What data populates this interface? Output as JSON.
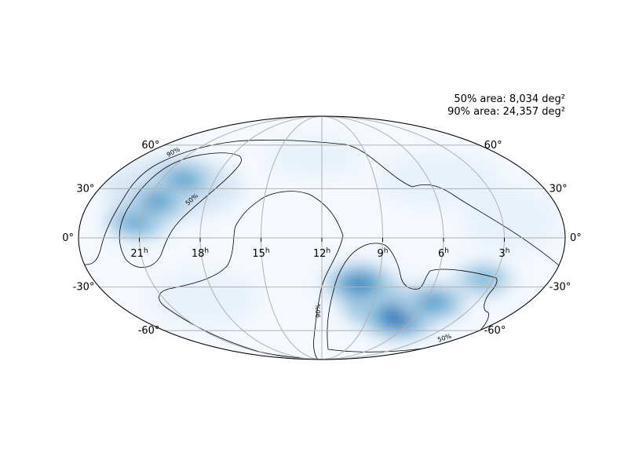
{
  "stats": {
    "area_50": "50% area: 8,034 deg²",
    "area_90": "90% area: 24,357 deg²"
  },
  "projection": "mollweide",
  "ra_ticks": [
    {
      "hours": 21,
      "label": "21",
      "sup": "h"
    },
    {
      "hours": 18,
      "label": "18",
      "sup": "h"
    },
    {
      "hours": 15,
      "label": "15",
      "sup": "h"
    },
    {
      "hours": 12,
      "label": "12",
      "sup": "h"
    },
    {
      "hours": 9,
      "label": "9",
      "sup": "h"
    },
    {
      "hours": 6,
      "label": "6",
      "sup": "h"
    },
    {
      "hours": 3,
      "label": "3",
      "sup": "h"
    }
  ],
  "dec_ticks": [
    {
      "deg": 60,
      "label": "60°"
    },
    {
      "deg": 30,
      "label": "30°"
    },
    {
      "deg": 0,
      "label": "0°"
    },
    {
      "deg": -30,
      "label": "-30°"
    },
    {
      "deg": -60,
      "label": "-60°"
    }
  ],
  "contour_labels": {
    "c50": "50%",
    "c90": "90%"
  },
  "colors": {
    "colormap": "Blues",
    "grid": "#b0b0b0",
    "contour": "#000000",
    "peak": "#08306b"
  },
  "probability_blobs": [
    {
      "ra_h": 8.4,
      "dec": -42,
      "strength": 1.0
    },
    {
      "ra_h": 7.0,
      "dec": -50,
      "strength": 0.85
    },
    {
      "ra_h": 5.5,
      "dec": -40,
      "strength": 0.55
    },
    {
      "ra_h": 10.0,
      "dec": -28,
      "strength": 0.7
    },
    {
      "ra_h": 3.5,
      "dec": -25,
      "strength": 0.3
    },
    {
      "ra_h": 19.8,
      "dec": 35,
      "strength": 0.55
    },
    {
      "ra_h": 21.2,
      "dec": 10,
      "strength": 0.5
    },
    {
      "ra_h": 20.5,
      "dec": 22,
      "strength": 0.45
    }
  ]
}
